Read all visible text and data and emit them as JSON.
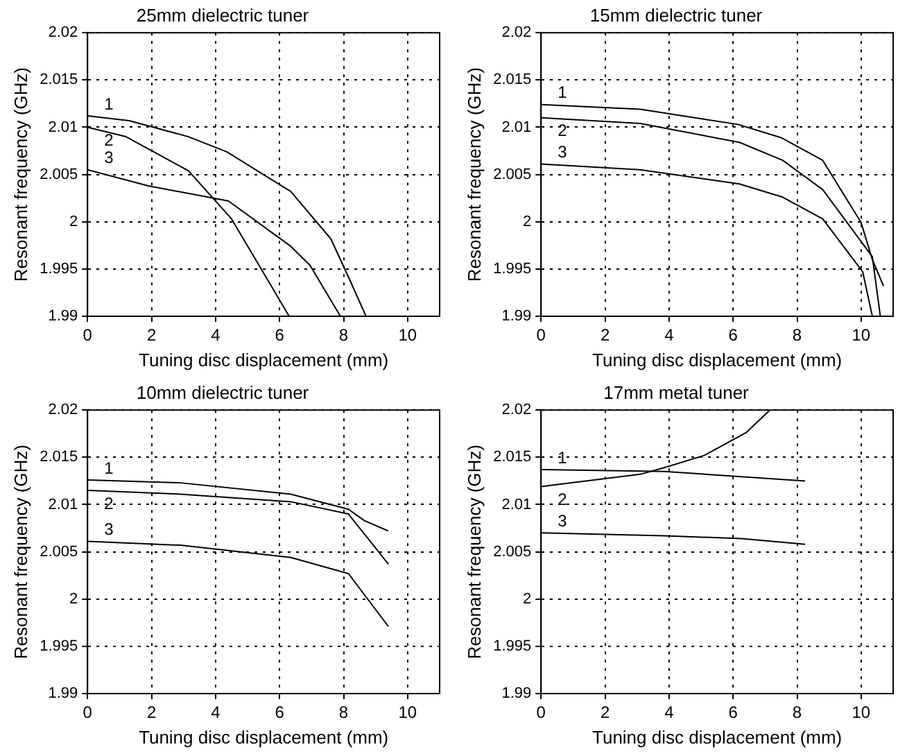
{
  "chart_data": [
    {
      "type": "line",
      "title": "25mm dielectric tuner",
      "xlabel": "Tuning disc displacement (mm)",
      "ylabel": "Resonant frequency (GHz)",
      "xlim": [
        0,
        11
      ],
      "xticks": [
        0,
        2,
        4,
        6,
        8,
        10
      ],
      "ylim": [
        1.99,
        2.02
      ],
      "yticks": [
        1.99,
        1.995,
        2,
        2.005,
        2.01,
        2.015,
        2.02
      ],
      "grid": true,
      "line_style": "solid",
      "marker": "none",
      "series": [
        {
          "name": "1",
          "color": "#000000",
          "x": [
            0,
            1.3,
            3.15,
            4.35,
            6.35,
            7.6,
            8.2,
            8.7
          ],
          "values": [
            2.0112,
            2.0107,
            2.009,
            2.0074,
            2.0032,
            1.9982,
            1.9938,
            1.99
          ]
        },
        {
          "name": "2",
          "color": "#000000",
          "x": [
            0,
            1.2,
            3.15,
            4.5,
            6.3
          ],
          "values": [
            2.01,
            2.009,
            2.0054,
            2.0003,
            1.99
          ]
        },
        {
          "name": "3",
          "color": "#000000",
          "x": [
            0,
            1.9,
            4.4,
            6.35,
            6.95,
            7.9
          ],
          "values": [
            2.0055,
            2.0038,
            2.0022,
            1.9974,
            1.9954,
            1.99
          ]
        }
      ]
    },
    {
      "type": "line",
      "title": "15mm dielectric tuner",
      "xlabel": "Tuning disc displacement (mm)",
      "ylabel": "Resonant frequency (GHz)",
      "xlim": [
        0,
        11
      ],
      "xticks": [
        0,
        2,
        4,
        6,
        8,
        10
      ],
      "ylim": [
        1.99,
        2.02
      ],
      "yticks": [
        1.99,
        1.995,
        2,
        2.005,
        2.01,
        2.015,
        2.02
      ],
      "grid": true,
      "line_style": "solid",
      "marker": "none",
      "series": [
        {
          "name": "1",
          "color": "#000000",
          "x": [
            0,
            3.1,
            6.15,
            7.5,
            8.8,
            10,
            10.35,
            10.7
          ],
          "values": [
            2.0124,
            2.0119,
            2.0103,
            2.0089,
            2.0065,
            1.9999,
            1.996,
            1.9932
          ]
        },
        {
          "name": "2",
          "color": "#000000",
          "x": [
            0,
            3.1,
            6.2,
            7.55,
            8.8,
            10.35,
            10.6
          ],
          "values": [
            2.011,
            2.0104,
            2.0084,
            2.0065,
            2.0034,
            1.9963,
            1.99
          ]
        },
        {
          "name": "3",
          "color": "#000000",
          "x": [
            0,
            3.1,
            6.2,
            7.55,
            8.8,
            10.05,
            10.35
          ],
          "values": [
            2.0061,
            2.0055,
            2.004,
            2.0026,
            2.0003,
            1.9947,
            1.99
          ]
        }
      ]
    },
    {
      "type": "line",
      "title": "10mm dielectric tuner",
      "xlabel": "Tuning disc displacement (mm)",
      "ylabel": "Resonant frequency (GHz)",
      "xlim": [
        0,
        11
      ],
      "xticks": [
        0,
        2,
        4,
        6,
        8,
        10
      ],
      "ylim": [
        1.99,
        2.02
      ],
      "yticks": [
        1.99,
        1.995,
        2,
        2.005,
        2.01,
        2.015,
        2.02
      ],
      "grid": true,
      "line_style": "solid",
      "marker": "none",
      "series": [
        {
          "name": "1",
          "color": "#000000",
          "x": [
            0,
            2.9,
            6.35,
            8.15,
            8.65,
            9.4
          ],
          "values": [
            2.0126,
            2.0123,
            2.0111,
            2.0095,
            2.0083,
            2.0072
          ]
        },
        {
          "name": "2",
          "color": "#000000",
          "x": [
            0,
            2.9,
            6.35,
            8.15,
            9.4
          ],
          "values": [
            2.0115,
            2.0111,
            2.0103,
            2.009,
            2.0037
          ]
        },
        {
          "name": "3",
          "color": "#000000",
          "x": [
            0,
            2.9,
            6.35,
            8.15,
            9.4
          ],
          "values": [
            2.0061,
            2.0057,
            2.0044,
            2.0027,
            1.9971
          ]
        }
      ]
    },
    {
      "type": "line",
      "title": "17mm metal tuner",
      "xlabel": "Tuning disc displacement (mm)",
      "ylabel": "Resonant frequency (GHz)",
      "xlim": [
        0,
        11
      ],
      "xticks": [
        0,
        2,
        4,
        6,
        8,
        10
      ],
      "ylim": [
        1.99,
        2.02
      ],
      "yticks": [
        1.99,
        1.995,
        2,
        2.005,
        2.01,
        2.015,
        2.02
      ],
      "grid": true,
      "line_style": "solid",
      "marker": "none",
      "series": [
        {
          "name": "1",
          "color": "#000000",
          "x": [
            0,
            3.85,
            8.25
          ],
          "values": [
            2.0137,
            2.0135,
            2.0125
          ]
        },
        {
          "name": "2",
          "color": "#000000",
          "x": [
            0,
            3.1,
            3.85,
            5.1,
            6.4,
            7.15
          ],
          "values": [
            2.0119,
            2.0132,
            2.0139,
            2.0152,
            2.0176,
            2.02
          ]
        },
        {
          "name": "3",
          "color": "#000000",
          "x": [
            0,
            3.85,
            6.25,
            8.25
          ],
          "values": [
            2.007,
            2.0067,
            2.0064,
            2.0058
          ]
        }
      ]
    }
  ]
}
